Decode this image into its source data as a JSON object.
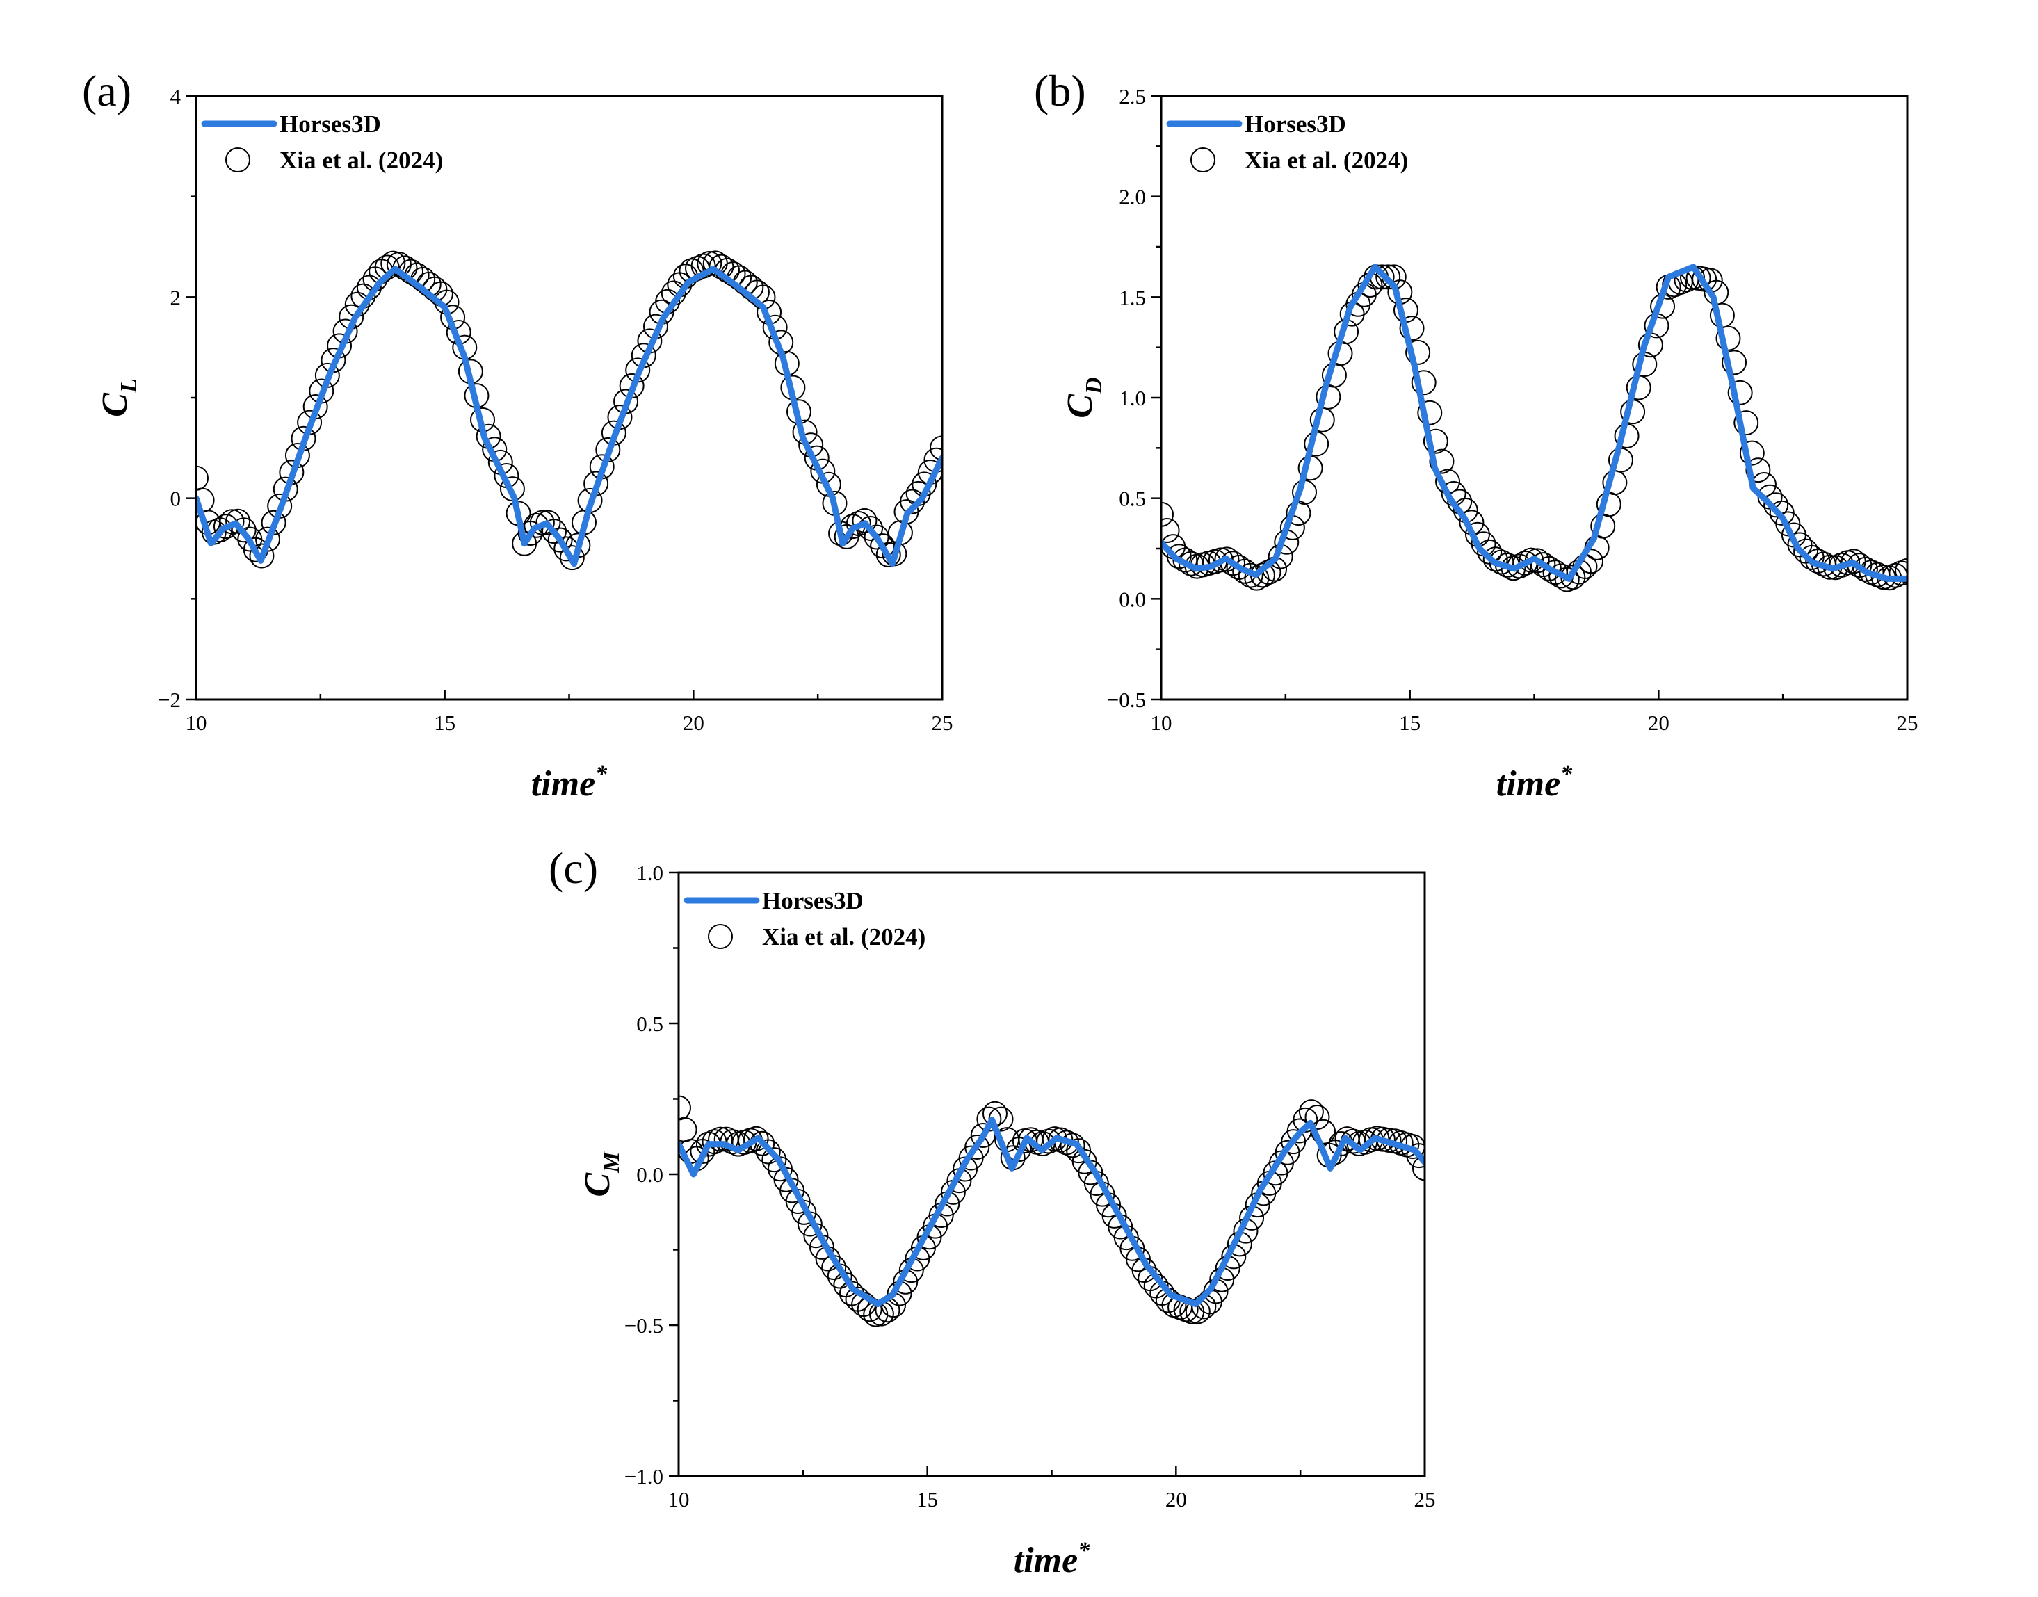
{
  "colors": {
    "line": "#2e7bdf",
    "marker": "#000000",
    "frame": "#000000"
  },
  "legend": {
    "line_label": "Horses3D",
    "marker_label": "Xia et al. (2024)"
  },
  "chart_data": [
    {
      "id": "a",
      "type": "line",
      "panel_label": "(a)",
      "xlabel": "time",
      "xlabel_sup": "*",
      "ylabel": "C",
      "ylabel_sub": "L",
      "xlim": [
        10,
        25
      ],
      "ylim": [
        -2,
        4
      ],
      "xticks": [
        10,
        15,
        20,
        25
      ],
      "yticks": [
        -2,
        0,
        2,
        4
      ],
      "ytick_labels": [
        "−2",
        "0",
        "2",
        "4"
      ],
      "legend_position": "top-left",
      "series": [
        {
          "name": "Horses3D",
          "style": "line",
          "x": [
            10.0,
            10.3,
            10.55,
            10.8,
            11.05,
            11.3,
            11.7,
            12.2,
            12.7,
            13.2,
            13.7,
            14.0,
            14.5,
            15.0,
            15.4,
            15.8,
            16.1,
            16.4,
            16.6,
            16.8,
            17.05,
            17.3,
            17.6,
            17.9,
            18.4,
            18.9,
            19.4,
            19.9,
            20.4,
            20.9,
            21.4,
            21.8,
            22.2,
            22.5,
            22.8,
            23.0,
            23.2,
            23.45,
            23.7,
            24.0,
            24.3,
            24.6,
            25.0
          ],
          "y": [
            0.0,
            -0.45,
            -0.3,
            -0.25,
            -0.4,
            -0.62,
            -0.1,
            0.6,
            1.25,
            1.8,
            2.15,
            2.28,
            2.1,
            1.9,
            1.4,
            0.6,
            0.3,
            0.0,
            -0.45,
            -0.3,
            -0.25,
            -0.4,
            -0.65,
            -0.1,
            0.6,
            1.25,
            1.8,
            2.15,
            2.28,
            2.1,
            1.9,
            1.4,
            0.6,
            0.3,
            0.0,
            -0.45,
            -0.3,
            -0.25,
            -0.4,
            -0.65,
            -0.15,
            0.0,
            0.4
          ]
        },
        {
          "name": "Xia et al. (2024)",
          "style": "markers",
          "x": [
            10.0,
            10.3,
            10.55,
            10.8,
            11.05,
            11.3,
            11.7,
            12.2,
            12.7,
            13.2,
            13.7,
            14.0,
            14.5,
            15.0,
            15.4,
            15.8,
            16.1,
            16.4,
            16.6,
            16.8,
            17.05,
            17.3,
            17.6,
            17.9,
            18.4,
            18.9,
            19.4,
            19.9,
            20.4,
            20.9,
            21.4,
            21.8,
            22.2,
            22.5,
            22.8,
            23.0,
            23.2,
            23.45,
            23.7,
            24.0,
            24.3,
            24.6,
            25.0
          ],
          "y": [
            0.2,
            -0.35,
            -0.3,
            -0.2,
            -0.38,
            -0.6,
            -0.05,
            0.65,
            1.3,
            1.9,
            2.25,
            2.35,
            2.2,
            2.0,
            1.5,
            0.7,
            0.38,
            0.05,
            -0.45,
            -0.28,
            -0.22,
            -0.4,
            -0.62,
            -0.05,
            0.65,
            1.3,
            1.9,
            2.25,
            2.35,
            2.2,
            2.0,
            1.5,
            0.7,
            0.38,
            0.05,
            -0.45,
            -0.28,
            -0.22,
            -0.4,
            -0.62,
            -0.1,
            0.1,
            0.5
          ]
        }
      ]
    },
    {
      "id": "b",
      "type": "line",
      "panel_label": "(b)",
      "xlabel": "time",
      "xlabel_sup": "*",
      "ylabel": "C",
      "ylabel_sub": "D",
      "xlim": [
        10,
        25
      ],
      "ylim": [
        -0.5,
        2.5
      ],
      "xticks": [
        10,
        15,
        20,
        25
      ],
      "yticks": [
        -0.5,
        0.0,
        0.5,
        1.0,
        1.5,
        2.0,
        2.5
      ],
      "ytick_labels": [
        "−0.5",
        "0.0",
        "0.5",
        "1.0",
        "1.5",
        "2.0",
        "2.5"
      ],
      "legend_position": "top-left",
      "series": [
        {
          "name": "Horses3D",
          "style": "line",
          "x": [
            10.0,
            10.3,
            10.7,
            11.0,
            11.3,
            11.6,
            11.9,
            12.3,
            12.8,
            13.3,
            13.8,
            14.3,
            14.7,
            15.1,
            15.5,
            15.8,
            16.1,
            16.4,
            16.7,
            17.1,
            17.5,
            17.8,
            18.2,
            18.7,
            19.2,
            19.7,
            20.2,
            20.7,
            21.1,
            21.5,
            21.9,
            22.2,
            22.5,
            22.8,
            23.1,
            23.5,
            23.9,
            24.2,
            24.6,
            25.0
          ],
          "y": [
            0.28,
            0.2,
            0.15,
            0.16,
            0.2,
            0.15,
            0.12,
            0.2,
            0.55,
            1.05,
            1.45,
            1.65,
            1.55,
            1.15,
            0.65,
            0.5,
            0.4,
            0.25,
            0.18,
            0.15,
            0.2,
            0.15,
            0.1,
            0.3,
            0.75,
            1.25,
            1.6,
            1.65,
            1.5,
            1.05,
            0.55,
            0.48,
            0.4,
            0.25,
            0.18,
            0.15,
            0.18,
            0.13,
            0.1,
            0.1
          ]
        },
        {
          "name": "Xia et al. (2024)",
          "style": "markers",
          "x": [
            10.0,
            10.3,
            10.7,
            11.0,
            11.3,
            11.6,
            11.9,
            12.3,
            12.8,
            13.3,
            13.8,
            14.3,
            14.7,
            15.1,
            15.5,
            15.8,
            16.1,
            16.4,
            16.7,
            17.1,
            17.5,
            17.8,
            18.2,
            18.7,
            19.2,
            19.7,
            20.2,
            20.7,
            21.1,
            21.5,
            21.9,
            22.2,
            22.5,
            22.8,
            23.1,
            23.5,
            23.9,
            24.2,
            24.6,
            25.0
          ],
          "y": [
            0.42,
            0.22,
            0.16,
            0.18,
            0.2,
            0.15,
            0.1,
            0.15,
            0.45,
            0.95,
            1.4,
            1.6,
            1.6,
            1.3,
            0.8,
            0.55,
            0.45,
            0.3,
            0.2,
            0.15,
            0.2,
            0.15,
            0.09,
            0.2,
            0.65,
            1.15,
            1.55,
            1.6,
            1.58,
            1.2,
            0.7,
            0.52,
            0.42,
            0.28,
            0.2,
            0.15,
            0.19,
            0.14,
            0.1,
            0.14
          ]
        }
      ]
    },
    {
      "id": "c",
      "type": "line",
      "panel_label": "(c)",
      "xlabel": "time",
      "xlabel_sup": "*",
      "ylabel": "C",
      "ylabel_sub": "M",
      "xlim": [
        10,
        25
      ],
      "ylim": [
        -1.0,
        1.0
      ],
      "xticks": [
        10,
        15,
        20,
        25
      ],
      "yticks": [
        -1.0,
        -0.5,
        0.0,
        0.5,
        1.0
      ],
      "ytick_labels": [
        "−1.0",
        "−0.5",
        "0.0",
        "0.5",
        "1.0"
      ],
      "legend_position": "top-left",
      "series": [
        {
          "name": "Horses3D",
          "style": "line",
          "x": [
            10.0,
            10.3,
            10.6,
            10.9,
            11.2,
            11.6,
            12.0,
            12.5,
            13.0,
            13.5,
            14.0,
            14.3,
            14.8,
            15.3,
            15.8,
            16.1,
            16.3,
            16.5,
            16.7,
            17.0,
            17.3,
            17.6,
            18.0,
            18.4,
            18.9,
            19.4,
            19.9,
            20.4,
            20.7,
            21.2,
            21.7,
            22.2,
            22.5,
            22.7,
            22.9,
            23.1,
            23.4,
            23.7,
            24.0,
            24.4,
            24.8,
            25.0
          ],
          "y": [
            0.1,
            0.0,
            0.1,
            0.1,
            0.08,
            0.12,
            0.05,
            -0.1,
            -0.25,
            -0.38,
            -0.43,
            -0.4,
            -0.25,
            -0.1,
            0.05,
            0.12,
            0.18,
            0.1,
            0.02,
            0.12,
            0.08,
            0.12,
            0.1,
            0.0,
            -0.15,
            -0.3,
            -0.4,
            -0.43,
            -0.38,
            -0.22,
            -0.05,
            0.08,
            0.14,
            0.17,
            0.1,
            0.02,
            0.12,
            0.08,
            0.12,
            0.1,
            0.08,
            0.04
          ]
        },
        {
          "name": "Xia et al. (2024)",
          "style": "markers",
          "x": [
            10.0,
            10.3,
            10.6,
            10.9,
            11.2,
            11.6,
            12.0,
            12.5,
            13.0,
            13.5,
            14.0,
            14.3,
            14.8,
            15.3,
            15.8,
            16.1,
            16.3,
            16.5,
            16.7,
            17.0,
            17.3,
            17.6,
            18.0,
            18.4,
            18.9,
            19.4,
            19.9,
            20.4,
            20.7,
            21.2,
            21.7,
            22.2,
            22.5,
            22.7,
            22.9,
            23.1,
            23.4,
            23.7,
            24.0,
            24.4,
            24.8,
            25.0
          ],
          "y": [
            0.22,
            0.04,
            0.1,
            0.12,
            0.1,
            0.12,
            0.03,
            -0.12,
            -0.28,
            -0.4,
            -0.47,
            -0.44,
            -0.28,
            -0.13,
            0.03,
            0.12,
            0.21,
            0.18,
            0.05,
            0.12,
            0.1,
            0.12,
            0.09,
            -0.03,
            -0.18,
            -0.33,
            -0.43,
            -0.46,
            -0.42,
            -0.26,
            -0.08,
            0.06,
            0.15,
            0.21,
            0.18,
            0.05,
            0.12,
            0.1,
            0.12,
            0.11,
            0.09,
            0.02
          ]
        }
      ]
    }
  ]
}
